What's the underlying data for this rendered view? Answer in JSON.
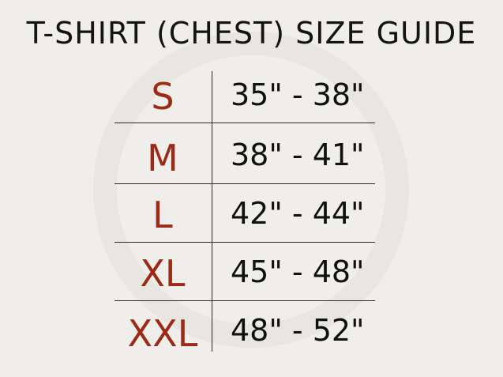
{
  "title": "T-SHIRT (CHEST) SIZE GUIDE",
  "colors": {
    "size_label": "#9b2a17",
    "text": "#111111",
    "background": "#efeeea"
  },
  "rows": [
    {
      "size": "S",
      "chest": "35\" - 38\""
    },
    {
      "size": "M",
      "chest": "38\" - 41\""
    },
    {
      "size": "L",
      "chest": "42\" - 44\""
    },
    {
      "size": "XL",
      "chest": "45\" - 48\""
    },
    {
      "size": "XXL",
      "chest": "48\" - 52\""
    }
  ]
}
